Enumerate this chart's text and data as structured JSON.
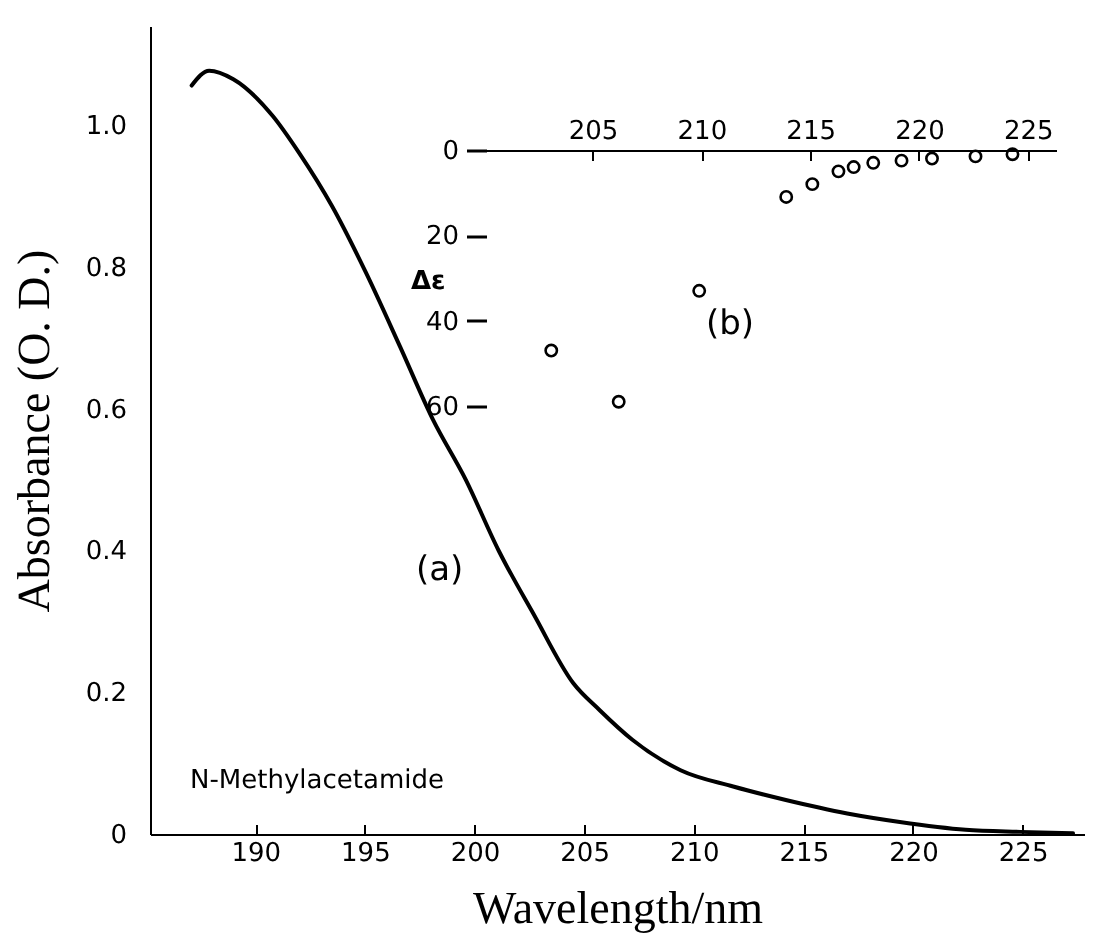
{
  "chart_data": [
    {
      "type": "line",
      "xlabel": "Wavelength/nm",
      "ylabel": "Absorbance (O. D.)",
      "xlim": [
        185.2,
        227.8
      ],
      "ylim": [
        0,
        1.14
      ],
      "xticks": [
        190,
        195,
        200,
        205,
        210,
        215,
        220,
        225
      ],
      "yticks": [
        0,
        0.2,
        0.4,
        0.6,
        0.8,
        {
          "value": 1,
          "label": "1.0"
        }
      ],
      "series": [
        {
          "color": "#000000",
          "x": [
            187.1,
            187.9,
            189.0,
            190.8,
            192.0,
            193.5,
            195.05,
            196.6,
            198.1,
            199.6,
            201.1,
            202.7,
            204.5,
            205.7,
            207.2,
            209.4,
            211.8,
            214.2,
            217.0,
            219.4,
            222.4,
            224.9,
            227.3
          ],
          "values": [
            1.056,
            1.077,
            1.065,
            1.013,
            0.961,
            0.886,
            0.792,
            0.688,
            0.585,
            0.5,
            0.4,
            0.31,
            0.213,
            0.175,
            0.133,
            0.09,
            0.067,
            0.048,
            0.029,
            0.017,
            0.006,
            0.003,
            0.001
          ]
        }
      ],
      "annotations": [
        "(a)",
        "N-Methylacetamide"
      ]
    },
    {
      "type": "scatter",
      "ylabel": "Δε",
      "xlim": [
        200.1,
        226.3
      ],
      "ylim": [
        60,
        0
      ],
      "xticks": [
        205,
        210,
        215,
        220,
        225
      ],
      "yticks": [
        0,
        20,
        40,
        60
      ],
      "marker": "circle",
      "series": [
        {
          "color": "#000000",
          "x": [
            203.1,
            206.2,
            209.9,
            213.9,
            215.1,
            216.3,
            217.0,
            217.9,
            219.2,
            220.6,
            222.6,
            224.3
          ],
          "values": [
            47,
            59,
            33,
            11,
            8,
            5,
            4,
            3,
            2.5,
            2,
            1.5,
            1
          ]
        }
      ],
      "annotations": [
        "(b)"
      ]
    }
  ]
}
